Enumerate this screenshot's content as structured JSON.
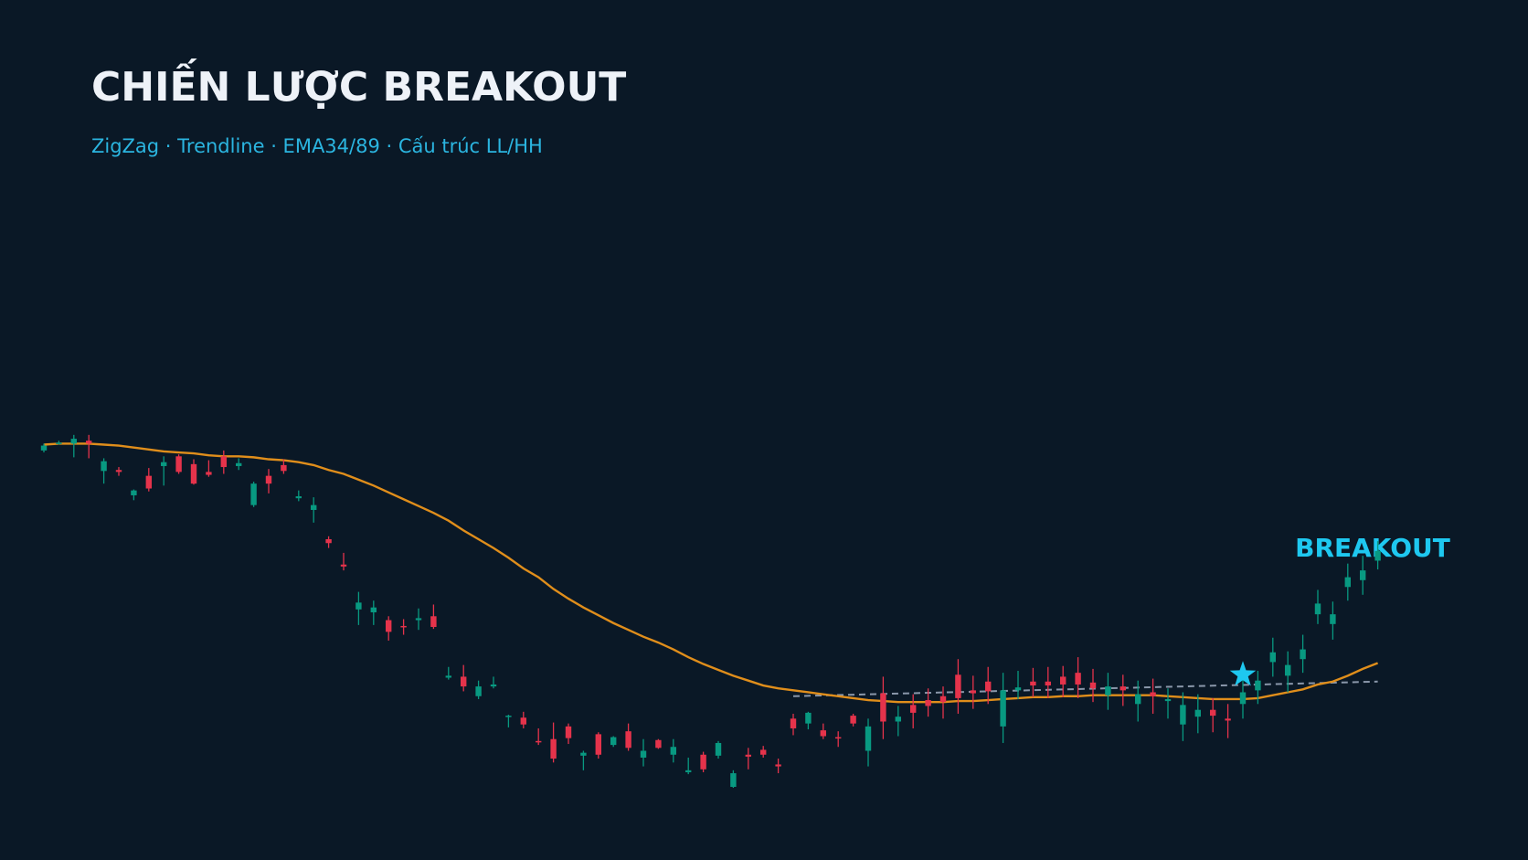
{
  "chart_data": {
    "type": "candlestick",
    "title": "CHIẾN LƯỢC BREAKOUT",
    "subtitle": "ZigZag · Trendline · EMA34/89 · Cấu trúc LL/HH",
    "annotation": "BREAKOUT",
    "ylim": [
      0,
      882
    ],
    "up_color": "#089981",
    "down_color": "#e5334b",
    "open": [
      420,
      427,
      427,
      430,
      399,
      400,
      374,
      394,
      404,
      414,
      406,
      398,
      414,
      404,
      364,
      394,
      405,
      371,
      359,
      329,
      303,
      257,
      254,
      246,
      240,
      246,
      250,
      187,
      188,
      168,
      178,
      147,
      146,
      122,
      124,
      137,
      107,
      129,
      118,
      132,
      105,
      123,
      108,
      90,
      108,
      107,
      75,
      108,
      113,
      98,
      145,
      140,
      133,
      126,
      148,
      112,
      171,
      142,
      159,
      164,
      168,
      190,
      174,
      183,
      137,
      174,
      183,
      183,
      188,
      192,
      182,
      169,
      178,
      160,
      172,
      163,
      139,
      147,
      154,
      145,
      160,
      174,
      203,
      189,
      206,
      252,
      242,
      280,
      287,
      307
    ],
    "high": [
      427,
      430,
      436,
      436,
      412,
      403,
      380,
      402,
      414,
      416,
      411,
      410,
      420,
      412,
      388,
      401,
      411,
      379,
      372,
      332,
      315,
      275,
      266,
      250,
      247,
      258,
      262,
      198,
      200,
      184,
      188,
      149,
      152,
      135,
      141,
      140,
      112,
      131,
      127,
      140,
      124,
      124,
      124,
      105,
      111,
      122,
      92,
      115,
      117,
      104,
      150,
      152,
      140,
      132,
      150,
      145,
      188,
      158,
      170,
      176,
      178,
      206,
      189,
      198,
      192,
      194,
      197,
      198,
      199,
      208,
      196,
      192,
      190,
      184,
      186,
      176,
      172,
      170,
      166,
      160,
      186,
      194,
      228,
      214,
      231,
      277,
      265,
      304,
      312,
      327
    ],
    "low": [
      418,
      426,
      413,
      412,
      386,
      394,
      369,
      378,
      384,
      396,
      385,
      393,
      396,
      400,
      362,
      376,
      396,
      368,
      346,
      320,
      297,
      241,
      241,
      225,
      231,
      236,
      237,
      185,
      173,
      165,
      176,
      136,
      135,
      118,
      100,
      119,
      92,
      104,
      116,
      112,
      96,
      114,
      100,
      88,
      90,
      104,
      74,
      93,
      105,
      89,
      128,
      134,
      124,
      116,
      137,
      96,
      124,
      127,
      135,
      147,
      145,
      150,
      155,
      160,
      120,
      165,
      167,
      166,
      167,
      166,
      162,
      154,
      158,
      142,
      150,
      145,
      122,
      130,
      131,
      125,
      145,
      160,
      188,
      172,
      192,
      242,
      226,
      266,
      272,
      298
    ],
    "close": [
      425,
      428,
      432,
      427,
      409,
      398,
      379,
      381,
      408,
      398,
      386,
      395,
      403,
      407,
      386,
      386,
      399,
      373,
      364,
      325,
      301,
      264,
      259,
      234,
      239,
      248,
      239,
      189,
      178,
      178,
      180,
      148,
      139,
      121,
      104,
      125,
      110,
      108,
      126,
      115,
      112,
      115,
      116,
      92,
      93,
      120,
      89,
      106,
      108,
      96,
      135,
      151,
      127,
      125,
      140,
      137,
      142,
      147,
      151,
      158,
      162,
      166,
      171,
      173,
      174,
      177,
      179,
      179,
      180,
      180,
      176,
      178,
      174,
      170,
      168,
      165,
      159,
      154,
      148,
      143,
      172,
      184,
      213,
      200,
      216,
      263,
      252,
      290,
      297,
      317
    ],
    "ema": {
      "color": "#e08e1b",
      "values": [
        426,
        427,
        427,
        427,
        426,
        425,
        423,
        421,
        419,
        418,
        417,
        415,
        414,
        414,
        413,
        411,
        410,
        408,
        405,
        400,
        396,
        390,
        384,
        377,
        370,
        363,
        356,
        348,
        338,
        329,
        320,
        310,
        299,
        290,
        278,
        268,
        259,
        251,
        243,
        236,
        229,
        223,
        216,
        208,
        201,
        195,
        189,
        184,
        179,
        176,
        174,
        172,
        170,
        168,
        166,
        164,
        163,
        162,
        162,
        162,
        162,
        163,
        163,
        164,
        165,
        166,
        167,
        167,
        168,
        168,
        169,
        169,
        169,
        169,
        169,
        168,
        167,
        166,
        165,
        165,
        165,
        166,
        169,
        172,
        175,
        180,
        183,
        189,
        196,
        202
      ]
    },
    "trendline": {
      "color": "#8a97aa",
      "x": [
        50,
        89
      ],
      "values": [
        168,
        183
      ]
    },
    "breakout_point": {
      "x": 80,
      "value": 190,
      "color": "#1ec8f0"
    }
  }
}
